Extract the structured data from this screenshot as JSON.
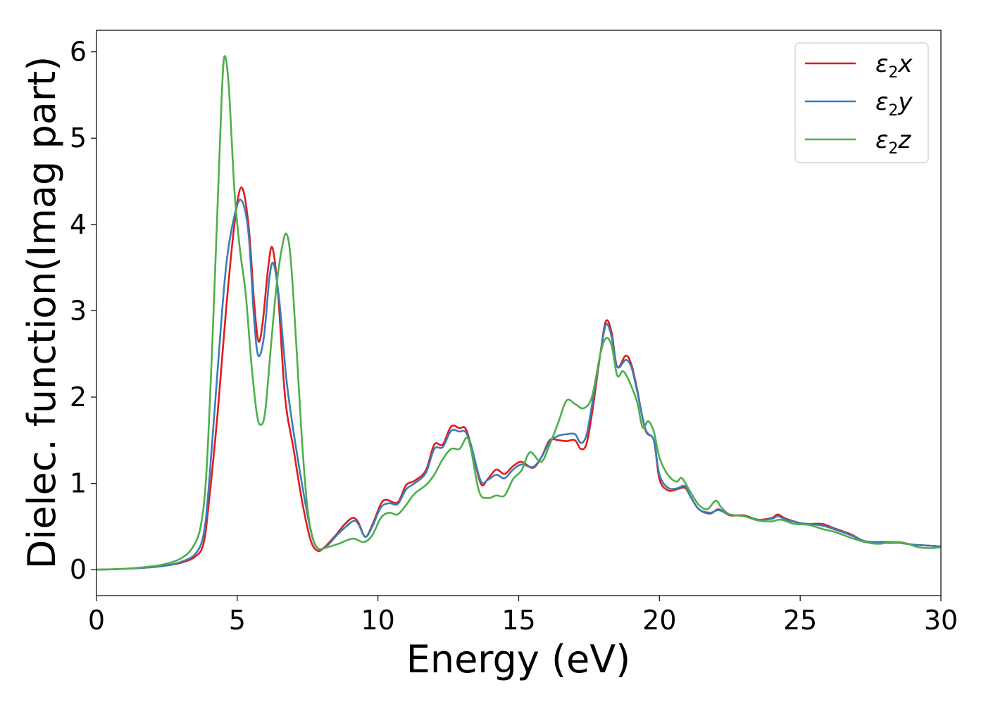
{
  "chart_data": {
    "type": "line",
    "title": "",
    "xlabel": "Energy (eV)",
    "ylabel": "Dielec. function(Imag part)",
    "xlim": [
      0,
      30
    ],
    "ylim": [
      -0.3,
      6.25
    ],
    "xticks": [
      0,
      5,
      10,
      15,
      20,
      25,
      30
    ],
    "yticks": [
      0,
      1,
      2,
      3,
      4,
      5,
      6
    ],
    "grid": false,
    "legend_position": "top-right",
    "series": [
      {
        "name": "ε2x",
        "legend_base": "ε",
        "legend_sub": "2",
        "legend_suffix": "x",
        "color": "#e41a1c",
        "points": [
          [
            0,
            0
          ],
          [
            1,
            0.01
          ],
          [
            2,
            0.03
          ],
          [
            2.5,
            0.05
          ],
          [
            3,
            0.08
          ],
          [
            3.5,
            0.15
          ],
          [
            3.8,
            0.3
          ],
          [
            4.0,
            0.8
          ],
          [
            4.3,
            1.8
          ],
          [
            4.6,
            3.0
          ],
          [
            4.9,
            4.0
          ],
          [
            5.15,
            4.43
          ],
          [
            5.4,
            4.0
          ],
          [
            5.6,
            3.1
          ],
          [
            5.75,
            2.65
          ],
          [
            5.9,
            2.85
          ],
          [
            6.1,
            3.5
          ],
          [
            6.25,
            3.73
          ],
          [
            6.45,
            3.2
          ],
          [
            6.7,
            2.0
          ],
          [
            7.0,
            1.4
          ],
          [
            7.3,
            0.8
          ],
          [
            7.6,
            0.35
          ],
          [
            7.85,
            0.22
          ],
          [
            8.1,
            0.26
          ],
          [
            8.5,
            0.4
          ],
          [
            8.8,
            0.52
          ],
          [
            9.1,
            0.6
          ],
          [
            9.3,
            0.55
          ],
          [
            9.55,
            0.38
          ],
          [
            9.8,
            0.52
          ],
          [
            10.1,
            0.76
          ],
          [
            10.3,
            0.81
          ],
          [
            10.7,
            0.78
          ],
          [
            11.0,
            0.98
          ],
          [
            11.3,
            1.03
          ],
          [
            11.7,
            1.15
          ],
          [
            12.0,
            1.45
          ],
          [
            12.3,
            1.45
          ],
          [
            12.6,
            1.66
          ],
          [
            12.9,
            1.64
          ],
          [
            13.1,
            1.64
          ],
          [
            13.3,
            1.45
          ],
          [
            13.65,
            1.0
          ],
          [
            13.9,
            1.05
          ],
          [
            14.2,
            1.16
          ],
          [
            14.5,
            1.11
          ],
          [
            14.8,
            1.2
          ],
          [
            15.1,
            1.25
          ],
          [
            15.5,
            1.18
          ],
          [
            15.8,
            1.3
          ],
          [
            16.1,
            1.5
          ],
          [
            16.4,
            1.5
          ],
          [
            16.7,
            1.49
          ],
          [
            17.0,
            1.5
          ],
          [
            17.2,
            1.4
          ],
          [
            17.4,
            1.45
          ],
          [
            17.6,
            1.8
          ],
          [
            17.9,
            2.5
          ],
          [
            18.1,
            2.88
          ],
          [
            18.3,
            2.75
          ],
          [
            18.5,
            2.35
          ],
          [
            18.8,
            2.48
          ],
          [
            19.0,
            2.38
          ],
          [
            19.2,
            2.1
          ],
          [
            19.5,
            1.62
          ],
          [
            19.8,
            1.5
          ],
          [
            20.0,
            1.05
          ],
          [
            20.3,
            0.92
          ],
          [
            20.6,
            0.93
          ],
          [
            20.9,
            0.95
          ],
          [
            21.1,
            0.85
          ],
          [
            21.4,
            0.7
          ],
          [
            21.8,
            0.65
          ],
          [
            22.1,
            0.7
          ],
          [
            22.5,
            0.63
          ],
          [
            23.0,
            0.63
          ],
          [
            23.5,
            0.58
          ],
          [
            24.0,
            0.6
          ],
          [
            24.2,
            0.64
          ],
          [
            24.5,
            0.59
          ],
          [
            25.0,
            0.54
          ],
          [
            25.3,
            0.53
          ],
          [
            25.8,
            0.53
          ],
          [
            26.2,
            0.48
          ],
          [
            26.8,
            0.41
          ],
          [
            27.3,
            0.33
          ],
          [
            28.0,
            0.32
          ],
          [
            28.5,
            0.32
          ],
          [
            29.0,
            0.29
          ],
          [
            29.5,
            0.28
          ],
          [
            30,
            0.27
          ]
        ]
      },
      {
        "name": "ε2y",
        "legend_base": "ε",
        "legend_sub": "2",
        "legend_suffix": "y",
        "color": "#377eb8",
        "points": [
          [
            0,
            0
          ],
          [
            1,
            0.01
          ],
          [
            2,
            0.03
          ],
          [
            2.5,
            0.05
          ],
          [
            3,
            0.09
          ],
          [
            3.5,
            0.18
          ],
          [
            3.8,
            0.4
          ],
          [
            4.0,
            1.0
          ],
          [
            4.3,
            2.3
          ],
          [
            4.6,
            3.5
          ],
          [
            4.9,
            4.1
          ],
          [
            5.15,
            4.28
          ],
          [
            5.4,
            3.9
          ],
          [
            5.6,
            2.9
          ],
          [
            5.75,
            2.48
          ],
          [
            5.95,
            2.7
          ],
          [
            6.15,
            3.4
          ],
          [
            6.3,
            3.54
          ],
          [
            6.5,
            3.1
          ],
          [
            6.75,
            2.2
          ],
          [
            7.0,
            1.6
          ],
          [
            7.35,
            0.9
          ],
          [
            7.65,
            0.4
          ],
          [
            7.9,
            0.24
          ],
          [
            8.2,
            0.28
          ],
          [
            8.6,
            0.42
          ],
          [
            9.1,
            0.56
          ],
          [
            9.3,
            0.53
          ],
          [
            9.55,
            0.38
          ],
          [
            9.8,
            0.5
          ],
          [
            10.1,
            0.72
          ],
          [
            10.4,
            0.77
          ],
          [
            10.7,
            0.76
          ],
          [
            11.0,
            0.93
          ],
          [
            11.3,
            1.0
          ],
          [
            11.7,
            1.12
          ],
          [
            12.0,
            1.4
          ],
          [
            12.3,
            1.42
          ],
          [
            12.6,
            1.61
          ],
          [
            12.9,
            1.6
          ],
          [
            13.1,
            1.6
          ],
          [
            13.3,
            1.45
          ],
          [
            13.65,
            1.03
          ],
          [
            13.9,
            1.04
          ],
          [
            14.2,
            1.1
          ],
          [
            14.5,
            1.06
          ],
          [
            14.8,
            1.16
          ],
          [
            15.1,
            1.22
          ],
          [
            15.5,
            1.19
          ],
          [
            15.8,
            1.3
          ],
          [
            16.1,
            1.48
          ],
          [
            16.4,
            1.55
          ],
          [
            16.7,
            1.57
          ],
          [
            17.0,
            1.57
          ],
          [
            17.2,
            1.47
          ],
          [
            17.4,
            1.55
          ],
          [
            17.6,
            1.9
          ],
          [
            17.9,
            2.5
          ],
          [
            18.1,
            2.84
          ],
          [
            18.3,
            2.7
          ],
          [
            18.5,
            2.35
          ],
          [
            18.8,
            2.43
          ],
          [
            19.0,
            2.35
          ],
          [
            19.2,
            2.08
          ],
          [
            19.5,
            1.63
          ],
          [
            19.8,
            1.5
          ],
          [
            20.0,
            1.1
          ],
          [
            20.3,
            0.95
          ],
          [
            20.6,
            0.94
          ],
          [
            20.9,
            0.97
          ],
          [
            21.1,
            0.85
          ],
          [
            21.4,
            0.7
          ],
          [
            21.8,
            0.66
          ],
          [
            22.1,
            0.69
          ],
          [
            22.5,
            0.64
          ],
          [
            23.0,
            0.62
          ],
          [
            23.5,
            0.58
          ],
          [
            24.0,
            0.59
          ],
          [
            24.2,
            0.62
          ],
          [
            24.5,
            0.58
          ],
          [
            25.0,
            0.54
          ],
          [
            25.3,
            0.53
          ],
          [
            25.8,
            0.51
          ],
          [
            26.2,
            0.47
          ],
          [
            26.8,
            0.4
          ],
          [
            27.3,
            0.33
          ],
          [
            28.0,
            0.31
          ],
          [
            28.5,
            0.31
          ],
          [
            29.0,
            0.29
          ],
          [
            29.5,
            0.28
          ],
          [
            30,
            0.27
          ]
        ]
      },
      {
        "name": "ε2z",
        "legend_base": "ε",
        "legend_sub": "2",
        "legend_suffix": "z",
        "color": "#4daf4a",
        "points": [
          [
            0,
            0
          ],
          [
            1,
            0.01
          ],
          [
            2,
            0.04
          ],
          [
            2.5,
            0.07
          ],
          [
            3,
            0.13
          ],
          [
            3.4,
            0.25
          ],
          [
            3.7,
            0.5
          ],
          [
            3.9,
            1.1
          ],
          [
            4.1,
            2.5
          ],
          [
            4.3,
            4.2
          ],
          [
            4.45,
            5.5
          ],
          [
            4.55,
            5.95
          ],
          [
            4.7,
            5.6
          ],
          [
            4.9,
            4.4
          ],
          [
            5.1,
            3.7
          ],
          [
            5.3,
            3.2
          ],
          [
            5.5,
            2.4
          ],
          [
            5.7,
            1.8
          ],
          [
            5.85,
            1.68
          ],
          [
            6.0,
            1.85
          ],
          [
            6.2,
            2.6
          ],
          [
            6.4,
            3.3
          ],
          [
            6.6,
            3.75
          ],
          [
            6.75,
            3.89
          ],
          [
            6.9,
            3.6
          ],
          [
            7.1,
            2.6
          ],
          [
            7.3,
            1.5
          ],
          [
            7.5,
            0.7
          ],
          [
            7.7,
            0.35
          ],
          [
            7.9,
            0.24
          ],
          [
            8.2,
            0.26
          ],
          [
            8.6,
            0.3
          ],
          [
            9.1,
            0.36
          ],
          [
            9.5,
            0.32
          ],
          [
            9.8,
            0.4
          ],
          [
            10.1,
            0.6
          ],
          [
            10.4,
            0.66
          ],
          [
            10.7,
            0.64
          ],
          [
            11.0,
            0.75
          ],
          [
            11.3,
            0.88
          ],
          [
            11.7,
            0.98
          ],
          [
            12.0,
            1.1
          ],
          [
            12.3,
            1.28
          ],
          [
            12.6,
            1.4
          ],
          [
            12.9,
            1.4
          ],
          [
            13.15,
            1.53
          ],
          [
            13.3,
            1.4
          ],
          [
            13.6,
            0.9
          ],
          [
            13.9,
            0.83
          ],
          [
            14.2,
            0.86
          ],
          [
            14.5,
            0.86
          ],
          [
            14.8,
            1.05
          ],
          [
            15.1,
            1.15
          ],
          [
            15.4,
            1.36
          ],
          [
            15.8,
            1.25
          ],
          [
            16.1,
            1.45
          ],
          [
            16.4,
            1.7
          ],
          [
            16.7,
            1.96
          ],
          [
            17.0,
            1.92
          ],
          [
            17.3,
            1.87
          ],
          [
            17.6,
            2.0
          ],
          [
            17.9,
            2.5
          ],
          [
            18.1,
            2.68
          ],
          [
            18.3,
            2.6
          ],
          [
            18.5,
            2.25
          ],
          [
            18.7,
            2.3
          ],
          [
            18.9,
            2.2
          ],
          [
            19.2,
            1.95
          ],
          [
            19.4,
            1.65
          ],
          [
            19.6,
            1.72
          ],
          [
            19.8,
            1.6
          ],
          [
            20.0,
            1.3
          ],
          [
            20.3,
            1.1
          ],
          [
            20.6,
            1.02
          ],
          [
            20.8,
            1.06
          ],
          [
            21.1,
            0.9
          ],
          [
            21.4,
            0.75
          ],
          [
            21.7,
            0.7
          ],
          [
            22.0,
            0.8
          ],
          [
            22.2,
            0.72
          ],
          [
            22.5,
            0.64
          ],
          [
            23.0,
            0.62
          ],
          [
            23.5,
            0.57
          ],
          [
            24.0,
            0.56
          ],
          [
            24.3,
            0.58
          ],
          [
            24.8,
            0.53
          ],
          [
            25.3,
            0.52
          ],
          [
            25.8,
            0.47
          ],
          [
            26.2,
            0.44
          ],
          [
            26.8,
            0.37
          ],
          [
            27.3,
            0.32
          ],
          [
            27.8,
            0.3
          ],
          [
            28.3,
            0.32
          ],
          [
            28.8,
            0.3
          ],
          [
            29.2,
            0.26
          ],
          [
            29.6,
            0.25
          ],
          [
            30,
            0.26
          ]
        ]
      }
    ]
  }
}
